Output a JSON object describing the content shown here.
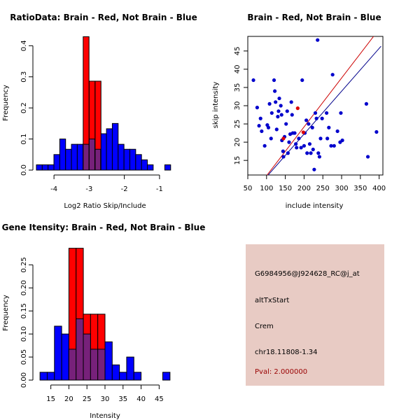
{
  "chart_data": [
    {
      "type": "bar",
      "title": "RatioData: Brain - Red, Not Brain - Blue",
      "xlabel": "Log2 Ratio Skip/Include",
      "ylabel": "Frequency",
      "xlim": [
        -4.5,
        -0.6
      ],
      "ylim": [
        0,
        0.43
      ],
      "xticks": [
        -4,
        -3,
        -2,
        -1
      ],
      "yticks": [
        0.0,
        0.1,
        0.2,
        0.3,
        0.4
      ],
      "ytick_labels": [
        "0.0",
        "0.1",
        "0.2",
        "0.3",
        "0.4"
      ],
      "bin_width": 0.166,
      "series": [
        {
          "name": "Not Brain",
          "color": "#0000ff",
          "bins": [
            [
              -4.5,
              0.017
            ],
            [
              -4.334,
              0.017
            ],
            [
              -4.168,
              0.017
            ],
            [
              -4.002,
              0.05
            ],
            [
              -3.836,
              0.1
            ],
            [
              -3.67,
              0.067
            ],
            [
              -3.504,
              0.083
            ],
            [
              -3.338,
              0.083
            ],
            [
              -3.172,
              0.083
            ],
            [
              -3.006,
              0.1
            ],
            [
              -2.84,
              0.067
            ],
            [
              -2.674,
              0.117
            ],
            [
              -2.508,
              0.133
            ],
            [
              -2.342,
              0.15
            ],
            [
              -2.176,
              0.083
            ],
            [
              -2.01,
              0.067
            ],
            [
              -1.844,
              0.067
            ],
            [
              -1.678,
              0.05
            ],
            [
              -1.512,
              0.033
            ],
            [
              -1.346,
              0.017
            ],
            [
              -0.85,
              0.017
            ]
          ]
        },
        {
          "name": "Brain",
          "color": "#ff0000",
          "bins": [
            [
              -3.17,
              0.429
            ],
            [
              -3.0,
              0.286
            ],
            [
              -2.83,
              0.286
            ]
          ]
        }
      ],
      "overlap_color": "#77217a"
    },
    {
      "type": "scatter",
      "title": "Brain - Red, Not Brain - Blue",
      "xlabel": "include intensity",
      "ylabel": "skip intensity",
      "xlim": [
        50,
        410
      ],
      "ylim": [
        11,
        49
      ],
      "xticks": [
        50,
        100,
        150,
        200,
        250,
        300,
        350,
        400
      ],
      "yticks": [
        15,
        20,
        25,
        30,
        35,
        40,
        45
      ],
      "series": [
        {
          "name": "Not Brain",
          "color": "#0000cc",
          "points": [
            [
              65,
              37
            ],
            [
              75,
              29.5
            ],
            [
              80,
              24.5
            ],
            [
              84,
              26.5
            ],
            [
              87,
              23
            ],
            [
              95,
              19
            ],
            [
              102,
              24.7
            ],
            [
              105,
              24
            ],
            [
              108,
              30.5
            ],
            [
              112,
              21
            ],
            [
              114,
              28
            ],
            [
              120,
              37
            ],
            [
              122,
              34
            ],
            [
              124,
              31
            ],
            [
              127,
              23.5
            ],
            [
              130,
              27
            ],
            [
              132,
              28.5
            ],
            [
              134,
              32
            ],
            [
              138,
              30
            ],
            [
              140,
              27.5
            ],
            [
              141,
              20.5
            ],
            [
              144,
              17.5
            ],
            [
              145,
              16
            ],
            [
              148,
              21.5
            ],
            [
              152,
              25
            ],
            [
              155,
              28.5
            ],
            [
              157,
              17
            ],
            [
              160,
              20
            ],
            [
              163,
              22.2
            ],
            [
              166,
              31
            ],
            [
              168,
              27.5
            ],
            [
              170,
              22.5
            ],
            [
              175,
              22.5
            ],
            [
              178,
              19.5
            ],
            [
              180,
              18.5
            ],
            [
              186,
              21
            ],
            [
              192,
              18.5
            ],
            [
              195,
              37
            ],
            [
              200,
              19
            ],
            [
              202,
              22.5
            ],
            [
              206,
              26
            ],
            [
              208,
              17
            ],
            [
              212,
              25
            ],
            [
              215,
              19.5
            ],
            [
              218,
              17
            ],
            [
              222,
              24
            ],
            [
              224,
              18
            ],
            [
              227,
              12.5
            ],
            [
              230,
              28
            ],
            [
              233,
              26.5
            ],
            [
              236,
              48
            ],
            [
              238,
              17
            ],
            [
              241,
              16
            ],
            [
              244,
              21
            ],
            [
              248,
              26.5
            ],
            [
              260,
              28
            ],
            [
              262,
              21
            ],
            [
              266,
              24
            ],
            [
              272,
              19
            ],
            [
              276,
              38.5
            ],
            [
              280,
              19
            ],
            [
              289,
              23
            ],
            [
              296,
              20
            ],
            [
              298,
              28
            ],
            [
              302,
              20.5
            ],
            [
              366,
              30.5
            ],
            [
              370,
              16
            ],
            [
              393,
              22.8
            ]
          ]
        },
        {
          "name": "Brain",
          "color": "#dd0000",
          "points": [
            [
              145,
              21
            ],
            [
              183,
              29.3
            ],
            [
              198,
              22.7
            ]
          ]
        }
      ],
      "fit_lines": [
        {
          "color": "#cc0000",
          "from": [
            100,
            10.8
          ],
          "to": [
            400,
            51.0
          ]
        },
        {
          "color": "#00008b",
          "from": [
            100,
            10.5
          ],
          "to": [
            405,
            46.3
          ]
        }
      ]
    },
    {
      "type": "bar",
      "title": "Gene Itensity: Brain - Red, Not Brain - Blue",
      "xlabel": "Intensity",
      "ylabel": "Frequency",
      "xlim": [
        11,
        49
      ],
      "ylim": [
        0,
        0.29
      ],
      "xticks": [
        15,
        20,
        25,
        30,
        35,
        40,
        45
      ],
      "yticks": [
        0.0,
        0.05,
        0.1,
        0.15,
        0.2,
        0.25
      ],
      "ytick_labels": [
        "0.00",
        "0.05",
        "0.10",
        "0.15",
        "0.20",
        "0.25"
      ],
      "bin_width": 2,
      "series": [
        {
          "name": "Not Brain",
          "color": "#0000ff",
          "bins": [
            [
              12,
              0.017
            ],
            [
              14,
              0.017
            ],
            [
              16,
              0.117
            ],
            [
              18,
              0.1
            ],
            [
              20,
              0.067
            ],
            [
              22,
              0.133
            ],
            [
              24,
              0.1
            ],
            [
              26,
              0.067
            ],
            [
              28,
              0.067
            ],
            [
              30,
              0.083
            ],
            [
              32,
              0.033
            ],
            [
              34,
              0.017
            ],
            [
              36,
              0.05
            ],
            [
              38,
              0.017
            ],
            [
              46,
              0.017
            ]
          ]
        },
        {
          "name": "Brain",
          "color": "#ff0000",
          "bins": [
            [
              20,
              0.286
            ],
            [
              22,
              0.286
            ],
            [
              24,
              0.143
            ],
            [
              26,
              0.143
            ],
            [
              28,
              0.143
            ]
          ]
        }
      ],
      "overlap_color": "#77217a"
    }
  ],
  "info_panel": {
    "probe_id": "G6984956@J924628_RC@j_at",
    "event": "altTxStart",
    "gene": "Crem",
    "location": "chr18.11808-1.34",
    "pval": "Pval: 2.000000",
    "background": "#e8cbc4",
    "pval_color": "#990000"
  }
}
